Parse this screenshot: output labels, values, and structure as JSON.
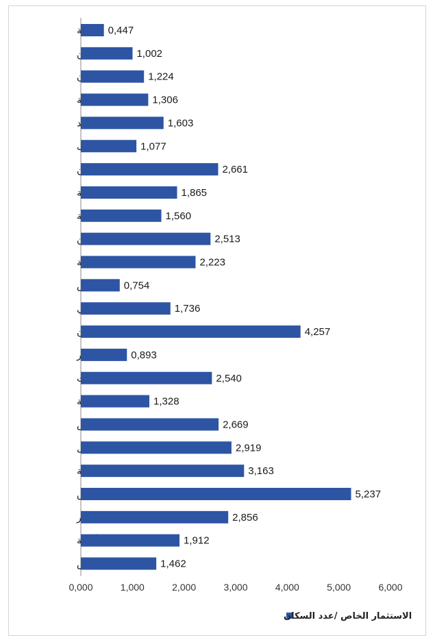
{
  "chart_data": {
    "type": "bar",
    "orientation": "horizontal",
    "categories": [
      "جندوبة",
      "القصرين",
      "القيروان",
      "سليانة",
      "سيدي بوزيد",
      "الكاف",
      "تطاوين",
      "باجة",
      "قفصة",
      "مدنين",
      "المهدية",
      "قابس",
      "قبلي",
      "زغوان",
      "توزر",
      "بنزرت",
      "منوبة",
      "صفاقس",
      "نابل",
      "سوسة",
      "بن عروس",
      "المنستير",
      "أريانة",
      "تونس"
    ],
    "series": [
      {
        "name": "الاستثمار الخاص /عدد السكان",
        "values": [
          0.447,
          1.002,
          1.224,
          1.306,
          1.603,
          1.077,
          2.661,
          1.865,
          1.56,
          2.513,
          2.223,
          0.754,
          1.736,
          4.257,
          0.893,
          2.54,
          1.328,
          2.669,
          2.919,
          3.163,
          5.237,
          2.856,
          1.912,
          1.462
        ],
        "labels": [
          "0,447",
          "1,002",
          "1,224",
          "1,306",
          "1,603",
          "1,077",
          "2,661",
          "1,865",
          "1,560",
          "2,513",
          "2,223",
          "0,754",
          "1,736",
          "4,257",
          "0,893",
          "2,540",
          "1,328",
          "2,669",
          "2,919",
          "3,163",
          "5,237",
          "2,856",
          "1,912",
          "1,462"
        ],
        "color": "#2e55a4"
      }
    ],
    "xlim": [
      0,
      6
    ],
    "xticks": [
      0,
      1,
      2,
      3,
      4,
      5,
      6
    ],
    "xtick_labels": [
      "0,000",
      "1,000",
      "2,000",
      "3,000",
      "4,000",
      "5,000",
      "6,000"
    ],
    "title": "",
    "xlabel": "",
    "ylabel": "",
    "grid": false,
    "legend_position": "bottom",
    "legend_label": "الاستثمار الخاص /عدد السكان"
  }
}
